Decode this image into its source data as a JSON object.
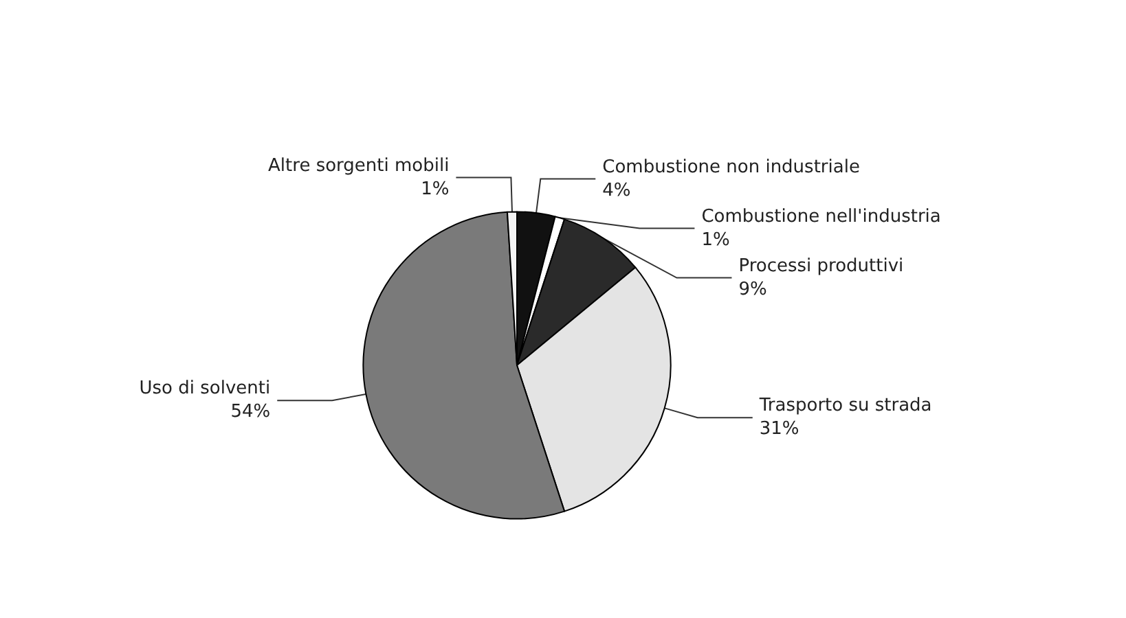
{
  "chart_data": {
    "type": "pie",
    "categories": [
      "Combustione non industriale",
      "Combustione nell'industria",
      "Processi produttivi",
      "Trasporto su strada",
      "Uso di solventi",
      "Altre sorgenti mobili"
    ],
    "values": [
      4,
      1,
      9,
      31,
      54,
      1
    ],
    "colors": [
      "#111111",
      "#ffffff",
      "#2a2a2a",
      "#e4e4e4",
      "#7a7a7a",
      "#f4f4f4"
    ],
    "value_labels": [
      "4%",
      "1%",
      "9%",
      "31%",
      "54%",
      "1%"
    ],
    "legend": false
  }
}
